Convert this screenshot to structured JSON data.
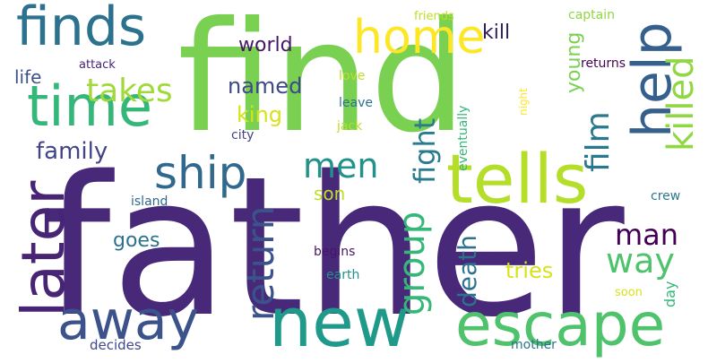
{
  "words": [
    {
      "text": "father",
      "color": "#472879",
      "rotate": false
    },
    {
      "text": "find",
      "color": "#7ad151",
      "rotate": false
    },
    {
      "text": "new",
      "color": "#1f9a8a",
      "rotate": false
    },
    {
      "text": "escape",
      "color": "#4ec36b",
      "rotate": false
    },
    {
      "text": "away",
      "color": "#3b528b",
      "rotate": false
    },
    {
      "text": "tells",
      "color": "#b5de2b",
      "rotate": false
    },
    {
      "text": "later",
      "color": "#482475",
      "rotate": true
    },
    {
      "text": "time",
      "color": "#35b779",
      "rotate": false
    },
    {
      "text": "finds",
      "color": "#2c728e",
      "rotate": false
    },
    {
      "text": "help",
      "color": "#355f8d",
      "rotate": true
    },
    {
      "text": "ship",
      "color": "#31688e",
      "rotate": false
    },
    {
      "text": "home",
      "color": "#fde725",
      "rotate": false
    },
    {
      "text": "return",
      "color": "#3b528b",
      "rotate": true
    },
    {
      "text": "group",
      "color": "#35b779",
      "rotate": true
    },
    {
      "text": "men",
      "color": "#21918c",
      "rotate": false
    },
    {
      "text": "way",
      "color": "#4ec36b",
      "rotate": false
    },
    {
      "text": "man",
      "color": "#440154",
      "rotate": false
    },
    {
      "text": "killed",
      "color": "#90d743",
      "rotate": true
    },
    {
      "text": "film",
      "color": "#2a788e",
      "rotate": true
    },
    {
      "text": "takes",
      "color": "#a0da39",
      "rotate": false
    },
    {
      "text": "fight",
      "color": "#287c8e",
      "rotate": true
    },
    {
      "text": "death",
      "color": "#2c728e",
      "rotate": true
    },
    {
      "text": "family",
      "color": "#414487",
      "rotate": false
    },
    {
      "text": "tries",
      "color": "#d8e219",
      "rotate": false
    },
    {
      "text": "named",
      "color": "#3e4989",
      "rotate": false
    },
    {
      "text": "king",
      "color": "#d8e219",
      "rotate": false
    },
    {
      "text": "world",
      "color": "#481668",
      "rotate": false
    },
    {
      "text": "young",
      "color": "#7ad151",
      "rotate": true
    },
    {
      "text": "kill",
      "color": "#2e1e5c",
      "rotate": false
    },
    {
      "text": "son",
      "color": "#bddf26",
      "rotate": false
    },
    {
      "text": "life",
      "color": "#3b528b",
      "rotate": false
    },
    {
      "text": "goes",
      "color": "#2c728e",
      "rotate": false
    },
    {
      "text": "day",
      "color": "#35b779",
      "rotate": true
    },
    {
      "text": "attack",
      "color": "#482475",
      "rotate": false
    },
    {
      "text": "returns",
      "color": "#440154",
      "rotate": false
    },
    {
      "text": "island",
      "color": "#31688e",
      "rotate": false
    },
    {
      "text": "crew",
      "color": "#2a788e",
      "rotate": false
    },
    {
      "text": "love",
      "color": "#bddf26",
      "rotate": false
    },
    {
      "text": "leave",
      "color": "#2c728e",
      "rotate": false
    },
    {
      "text": "jack",
      "color": "#b5de2b",
      "rotate": false
    },
    {
      "text": "city",
      "color": "#414487",
      "rotate": false
    },
    {
      "text": "captain",
      "color": "#90d743",
      "rotate": false
    },
    {
      "text": "friends",
      "color": "#bddf26",
      "rotate": false
    },
    {
      "text": "night",
      "color": "#fde725",
      "rotate": true
    },
    {
      "text": "eventually",
      "color": "#35b779",
      "rotate": true
    },
    {
      "text": "begins",
      "color": "#481668",
      "rotate": false
    },
    {
      "text": "earth",
      "color": "#21918c",
      "rotate": false
    },
    {
      "text": "soon",
      "color": "#d8e219",
      "rotate": false
    },
    {
      "text": "decides",
      "color": "#3e4989",
      "rotate": false
    },
    {
      "text": "mother",
      "color": "#2c728e",
      "rotate": false
    }
  ]
}
